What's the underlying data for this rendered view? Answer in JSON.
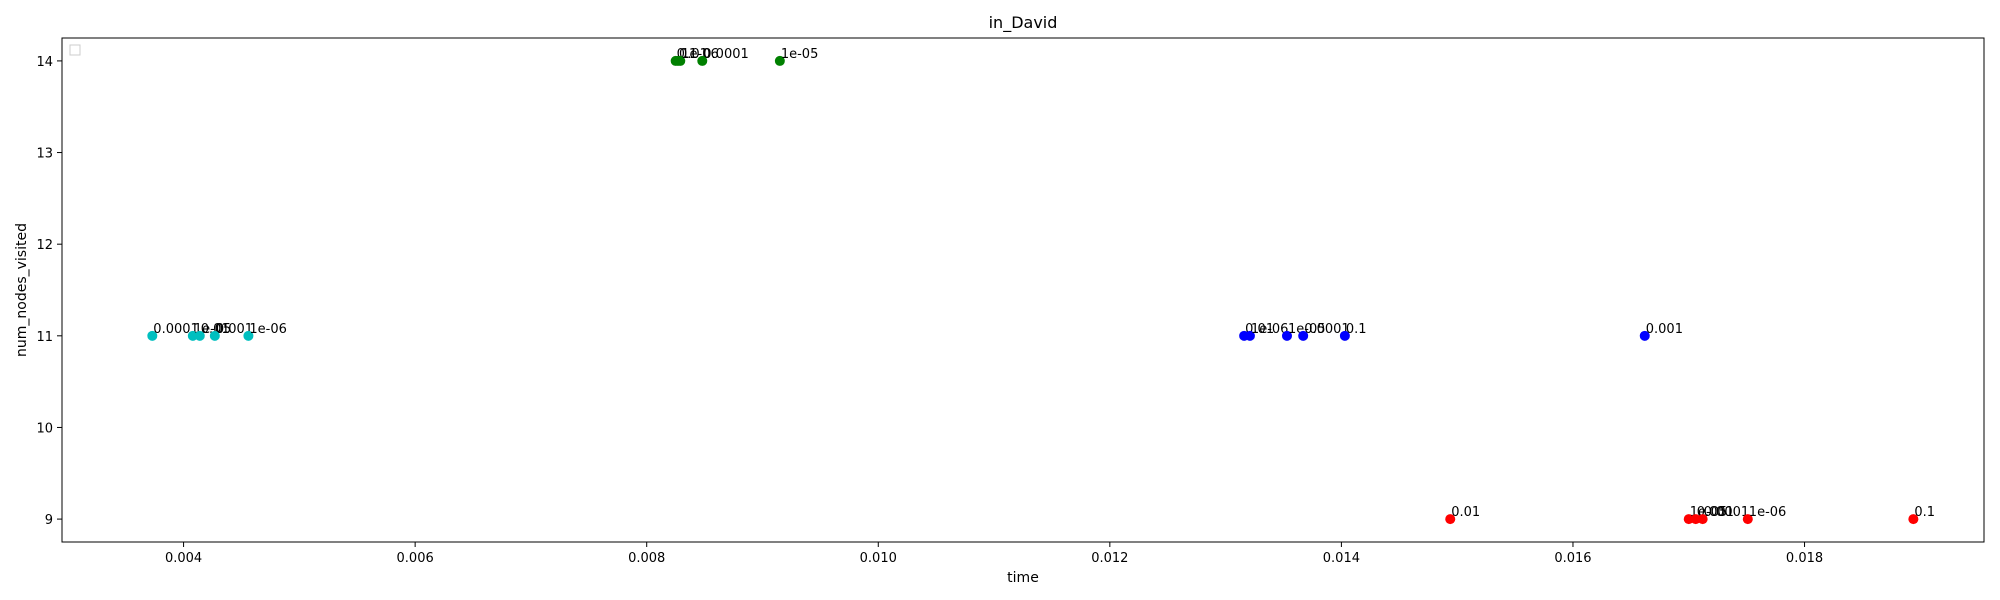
{
  "chart_data": {
    "type": "scatter",
    "title": "in_David",
    "xlabel": "time",
    "ylabel": "num_nodes_visited",
    "xlim": [
      0.00295,
      0.01955
    ],
    "ylim": [
      8.75,
      14.25
    ],
    "xticks": [
      {
        "value": 0.004,
        "label": "0.004"
      },
      {
        "value": 0.006,
        "label": "0.006"
      },
      {
        "value": 0.008,
        "label": "0.008"
      },
      {
        "value": 0.01,
        "label": "0.010"
      },
      {
        "value": 0.012,
        "label": "0.012"
      },
      {
        "value": 0.014,
        "label": "0.014"
      },
      {
        "value": 0.016,
        "label": "0.016"
      },
      {
        "value": 0.018,
        "label": "0.018"
      }
    ],
    "yticks": [
      {
        "value": 9,
        "label": "9"
      },
      {
        "value": 10,
        "label": "10"
      },
      {
        "value": 11,
        "label": "11"
      },
      {
        "value": 12,
        "label": "12"
      },
      {
        "value": 13,
        "label": "13"
      },
      {
        "value": 14,
        "label": "14"
      }
    ],
    "grid": false,
    "legend": "top-left (empty)",
    "series": [
      {
        "color": "#00bfbf",
        "points": [
          {
            "x": 0.00373,
            "y": 11,
            "label": "0.0001"
          },
          {
            "x": 0.00408,
            "y": 11,
            "label": "1e-05"
          },
          {
            "x": 0.00414,
            "y": 11,
            "label": "0.01"
          },
          {
            "x": 0.00427,
            "y": 11,
            "label": "0.001"
          },
          {
            "x": 0.00456,
            "y": 11,
            "label": "1e-06"
          }
        ]
      },
      {
        "color": "#008000",
        "points": [
          {
            "x": 0.00825,
            "y": 14,
            "label": "0.1"
          },
          {
            "x": 0.00827,
            "y": 14,
            "label": "0.01"
          },
          {
            "x": 0.00829,
            "y": 14,
            "label": "1e-06"
          },
          {
            "x": 0.00848,
            "y": 14,
            "label": "0.0001"
          },
          {
            "x": 0.00915,
            "y": 14,
            "label": "1e-05"
          }
        ]
      },
      {
        "color": "#0000ff",
        "points": [
          {
            "x": 0.01316,
            "y": 11,
            "label": "0.01"
          },
          {
            "x": 0.01321,
            "y": 11,
            "label": "1e-06"
          },
          {
            "x": 0.01353,
            "y": 11,
            "label": "1e-05"
          },
          {
            "x": 0.01367,
            "y": 11,
            "label": "0.0001"
          },
          {
            "x": 0.01403,
            "y": 11,
            "label": "0.1"
          },
          {
            "x": 0.01662,
            "y": 11,
            "label": "0.001"
          }
        ]
      },
      {
        "color": "#ff0000",
        "points": [
          {
            "x": 0.01494,
            "y": 9,
            "label": "0.01"
          },
          {
            "x": 0.017,
            "y": 9,
            "label": "1e-05"
          },
          {
            "x": 0.01706,
            "y": 9,
            "label": "0.001"
          },
          {
            "x": 0.01712,
            "y": 9,
            "label": "0.0001"
          },
          {
            "x": 0.01751,
            "y": 9,
            "label": "1e-06"
          },
          {
            "x": 0.01894,
            "y": 9,
            "label": "0.1"
          }
        ]
      }
    ]
  }
}
